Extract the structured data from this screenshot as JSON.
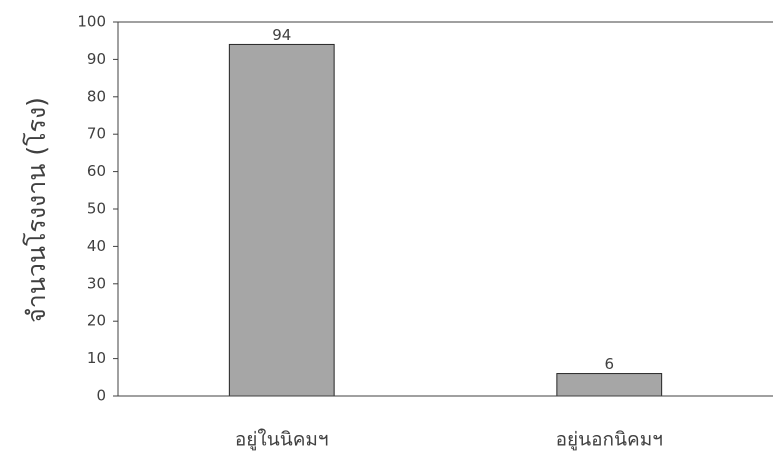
{
  "chart_data": {
    "type": "bar",
    "y_label": "จำนวนโรงงาน (โรง)",
    "categories": [
      "อยู่ในนิคมฯ",
      "อยู่นอกนิคมฯ"
    ],
    "values": [
      94,
      6
    ],
    "color": "#a6a6a6",
    "ylim": [
      0,
      100
    ],
    "yticks": [
      0,
      10,
      20,
      30,
      40,
      50,
      60,
      70,
      80,
      90,
      100
    ],
    "grid": false
  }
}
